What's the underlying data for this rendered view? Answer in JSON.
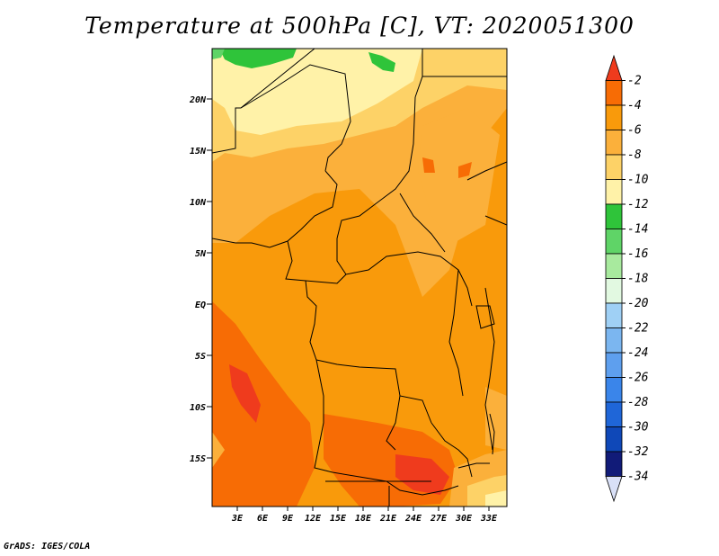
{
  "title": "Temperature at 500hPa [C], VT: 2020051300",
  "footer": "GrADS: IGES/COLA",
  "map": {
    "lat_ticks": [
      "20N",
      "15N",
      "10N",
      "5N",
      "EQ",
      "5S",
      "10S",
      "15S"
    ],
    "lon_ticks": [
      "3E",
      "6E",
      "9E",
      "12E",
      "15E",
      "18E",
      "21E",
      "24E",
      "27E",
      "30E",
      "33E"
    ]
  },
  "colorbar": {
    "levels": [
      "-2",
      "-4",
      "-6",
      "-8",
      "-10",
      "-12",
      "-14",
      "-16",
      "-18",
      "-20",
      "-22",
      "-24",
      "-26",
      "-28",
      "-30",
      "-32",
      "-34"
    ],
    "colors": [
      "#ef3b1d",
      "#f76c05",
      "#f99a0b",
      "#fbb03b",
      "#fdd267",
      "#fff2a8",
      "#2fc43a",
      "#5fd467",
      "#a8ea9e",
      "#e2f9e1",
      "#9fd0f5",
      "#7bb6f0",
      "#5e9fee",
      "#3a85ea",
      "#1f66d8",
      "#0f48b8",
      "#111b78",
      "#d9e0f7"
    ]
  }
}
